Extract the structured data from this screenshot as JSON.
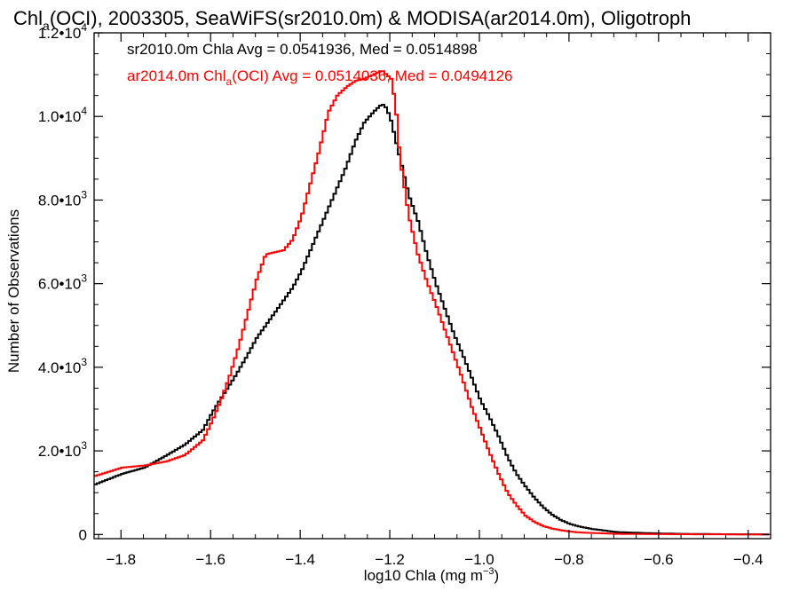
{
  "chart_data": {
    "type": "line",
    "title": {
      "prefix": "Chl",
      "subscript": "a",
      "rest": "(OCI), 2003305, SeaWiFS(sr2010.0m) & MODISA(ar2014.0m), Oligotroph"
    },
    "xlabel": {
      "main": "log10 Chla (mg m",
      "sup": "−3",
      "end": ")"
    },
    "ylabel": "Number of Observations",
    "xlim": [
      -1.86,
      -0.35
    ],
    "ylim": [
      -100,
      12000
    ],
    "x_ticks": [
      {
        "value": -1.8,
        "label": "−1.8"
      },
      {
        "value": -1.6,
        "label": "−1.6"
      },
      {
        "value": -1.4,
        "label": "−1.4"
      },
      {
        "value": -1.2,
        "label": "−1.2"
      },
      {
        "value": -1.0,
        "label": "−1.0"
      },
      {
        "value": -0.8,
        "label": "−0.8"
      },
      {
        "value": -0.6,
        "label": "−0.6"
      },
      {
        "value": -0.4,
        "label": "−0.4"
      }
    ],
    "y_ticks": [
      {
        "value": 0,
        "mant": "0",
        "exp": ""
      },
      {
        "value": 2000,
        "mant": "2.0•10",
        "exp": "3"
      },
      {
        "value": 4000,
        "mant": "4.0•10",
        "exp": "3"
      },
      {
        "value": 6000,
        "mant": "6.0•10",
        "exp": "3"
      },
      {
        "value": 8000,
        "mant": "8.0•10",
        "exp": "3"
      },
      {
        "value": 10000,
        "mant": "1.0•10",
        "exp": "4"
      },
      {
        "value": 12000,
        "mant": "1.2•10",
        "exp": "4"
      }
    ],
    "legend": [
      {
        "series": 0,
        "text_main": "sr2010.0m Chla Avg = 0.0541936, Med = 0.0514898"
      },
      {
        "series": 1,
        "text_pre": "ar2014.0m Chl",
        "text_sub": "a",
        "text_post": "(OCI) Avg = 0.0514036, Med = 0.0494126"
      }
    ],
    "series": [
      {
        "color": "#000000",
        "x": [
          -1.86,
          -1.8,
          -1.75,
          -1.7,
          -1.66,
          -1.62,
          -1.6,
          -1.58,
          -1.55,
          -1.52,
          -1.5,
          -1.48,
          -1.46,
          -1.44,
          -1.42,
          -1.4,
          -1.38,
          -1.36,
          -1.34,
          -1.32,
          -1.3,
          -1.28,
          -1.26,
          -1.24,
          -1.22,
          -1.21,
          -1.2,
          -1.18,
          -1.16,
          -1.14,
          -1.12,
          -1.1,
          -1.08,
          -1.06,
          -1.04,
          -1.02,
          -1.0,
          -0.98,
          -0.96,
          -0.94,
          -0.92,
          -0.9,
          -0.88,
          -0.86,
          -0.84,
          -0.82,
          -0.8,
          -0.78,
          -0.75,
          -0.72,
          -0.7,
          -0.65,
          -0.6,
          -0.55,
          -0.5,
          -0.45,
          -0.4,
          -0.35
        ],
        "y": [
          1200,
          1450,
          1600,
          1900,
          2150,
          2500,
          2900,
          3250,
          3750,
          4300,
          4700,
          5000,
          5300,
          5600,
          5900,
          6300,
          6800,
          7300,
          7800,
          8300,
          8800,
          9400,
          9850,
          10100,
          10300,
          10200,
          9900,
          9000,
          8100,
          7500,
          6700,
          6000,
          5400,
          4800,
          4300,
          3750,
          3200,
          2800,
          2350,
          1850,
          1450,
          1150,
          880,
          650,
          470,
          340,
          250,
          190,
          130,
          90,
          60,
          40,
          25,
          15,
          10,
          6,
          4,
          2
        ]
      },
      {
        "color": "#ff0000",
        "x": [
          -1.86,
          -1.8,
          -1.75,
          -1.7,
          -1.66,
          -1.62,
          -1.6,
          -1.58,
          -1.56,
          -1.54,
          -1.52,
          -1.5,
          -1.48,
          -1.46,
          -1.44,
          -1.42,
          -1.4,
          -1.38,
          -1.36,
          -1.34,
          -1.32,
          -1.3,
          -1.28,
          -1.26,
          -1.24,
          -1.22,
          -1.2,
          -1.19,
          -1.18,
          -1.16,
          -1.14,
          -1.12,
          -1.1,
          -1.08,
          -1.06,
          -1.04,
          -1.02,
          -1.0,
          -0.98,
          -0.96,
          -0.94,
          -0.92,
          -0.9,
          -0.88,
          -0.86,
          -0.84,
          -0.82,
          -0.8,
          -0.78,
          -0.75,
          -0.72,
          -0.7,
          -0.65,
          -0.6,
          -0.55,
          -0.5,
          -0.45,
          -0.4,
          -0.35
        ],
        "y": [
          1400,
          1600,
          1650,
          1750,
          1900,
          2250,
          2700,
          3200,
          3800,
          4500,
          5300,
          6100,
          6700,
          6750,
          6800,
          7050,
          7600,
          8400,
          9200,
          10100,
          10500,
          10700,
          10850,
          10900,
          11000,
          11100,
          10900,
          10300,
          9000,
          7600,
          6700,
          6050,
          5500,
          4900,
          4300,
          3700,
          3050,
          2500,
          1950,
          1450,
          1000,
          700,
          450,
          300,
          200,
          140,
          100,
          70,
          50,
          35,
          25,
          15,
          10,
          8,
          6,
          4,
          3,
          2,
          1
        ]
      }
    ]
  }
}
